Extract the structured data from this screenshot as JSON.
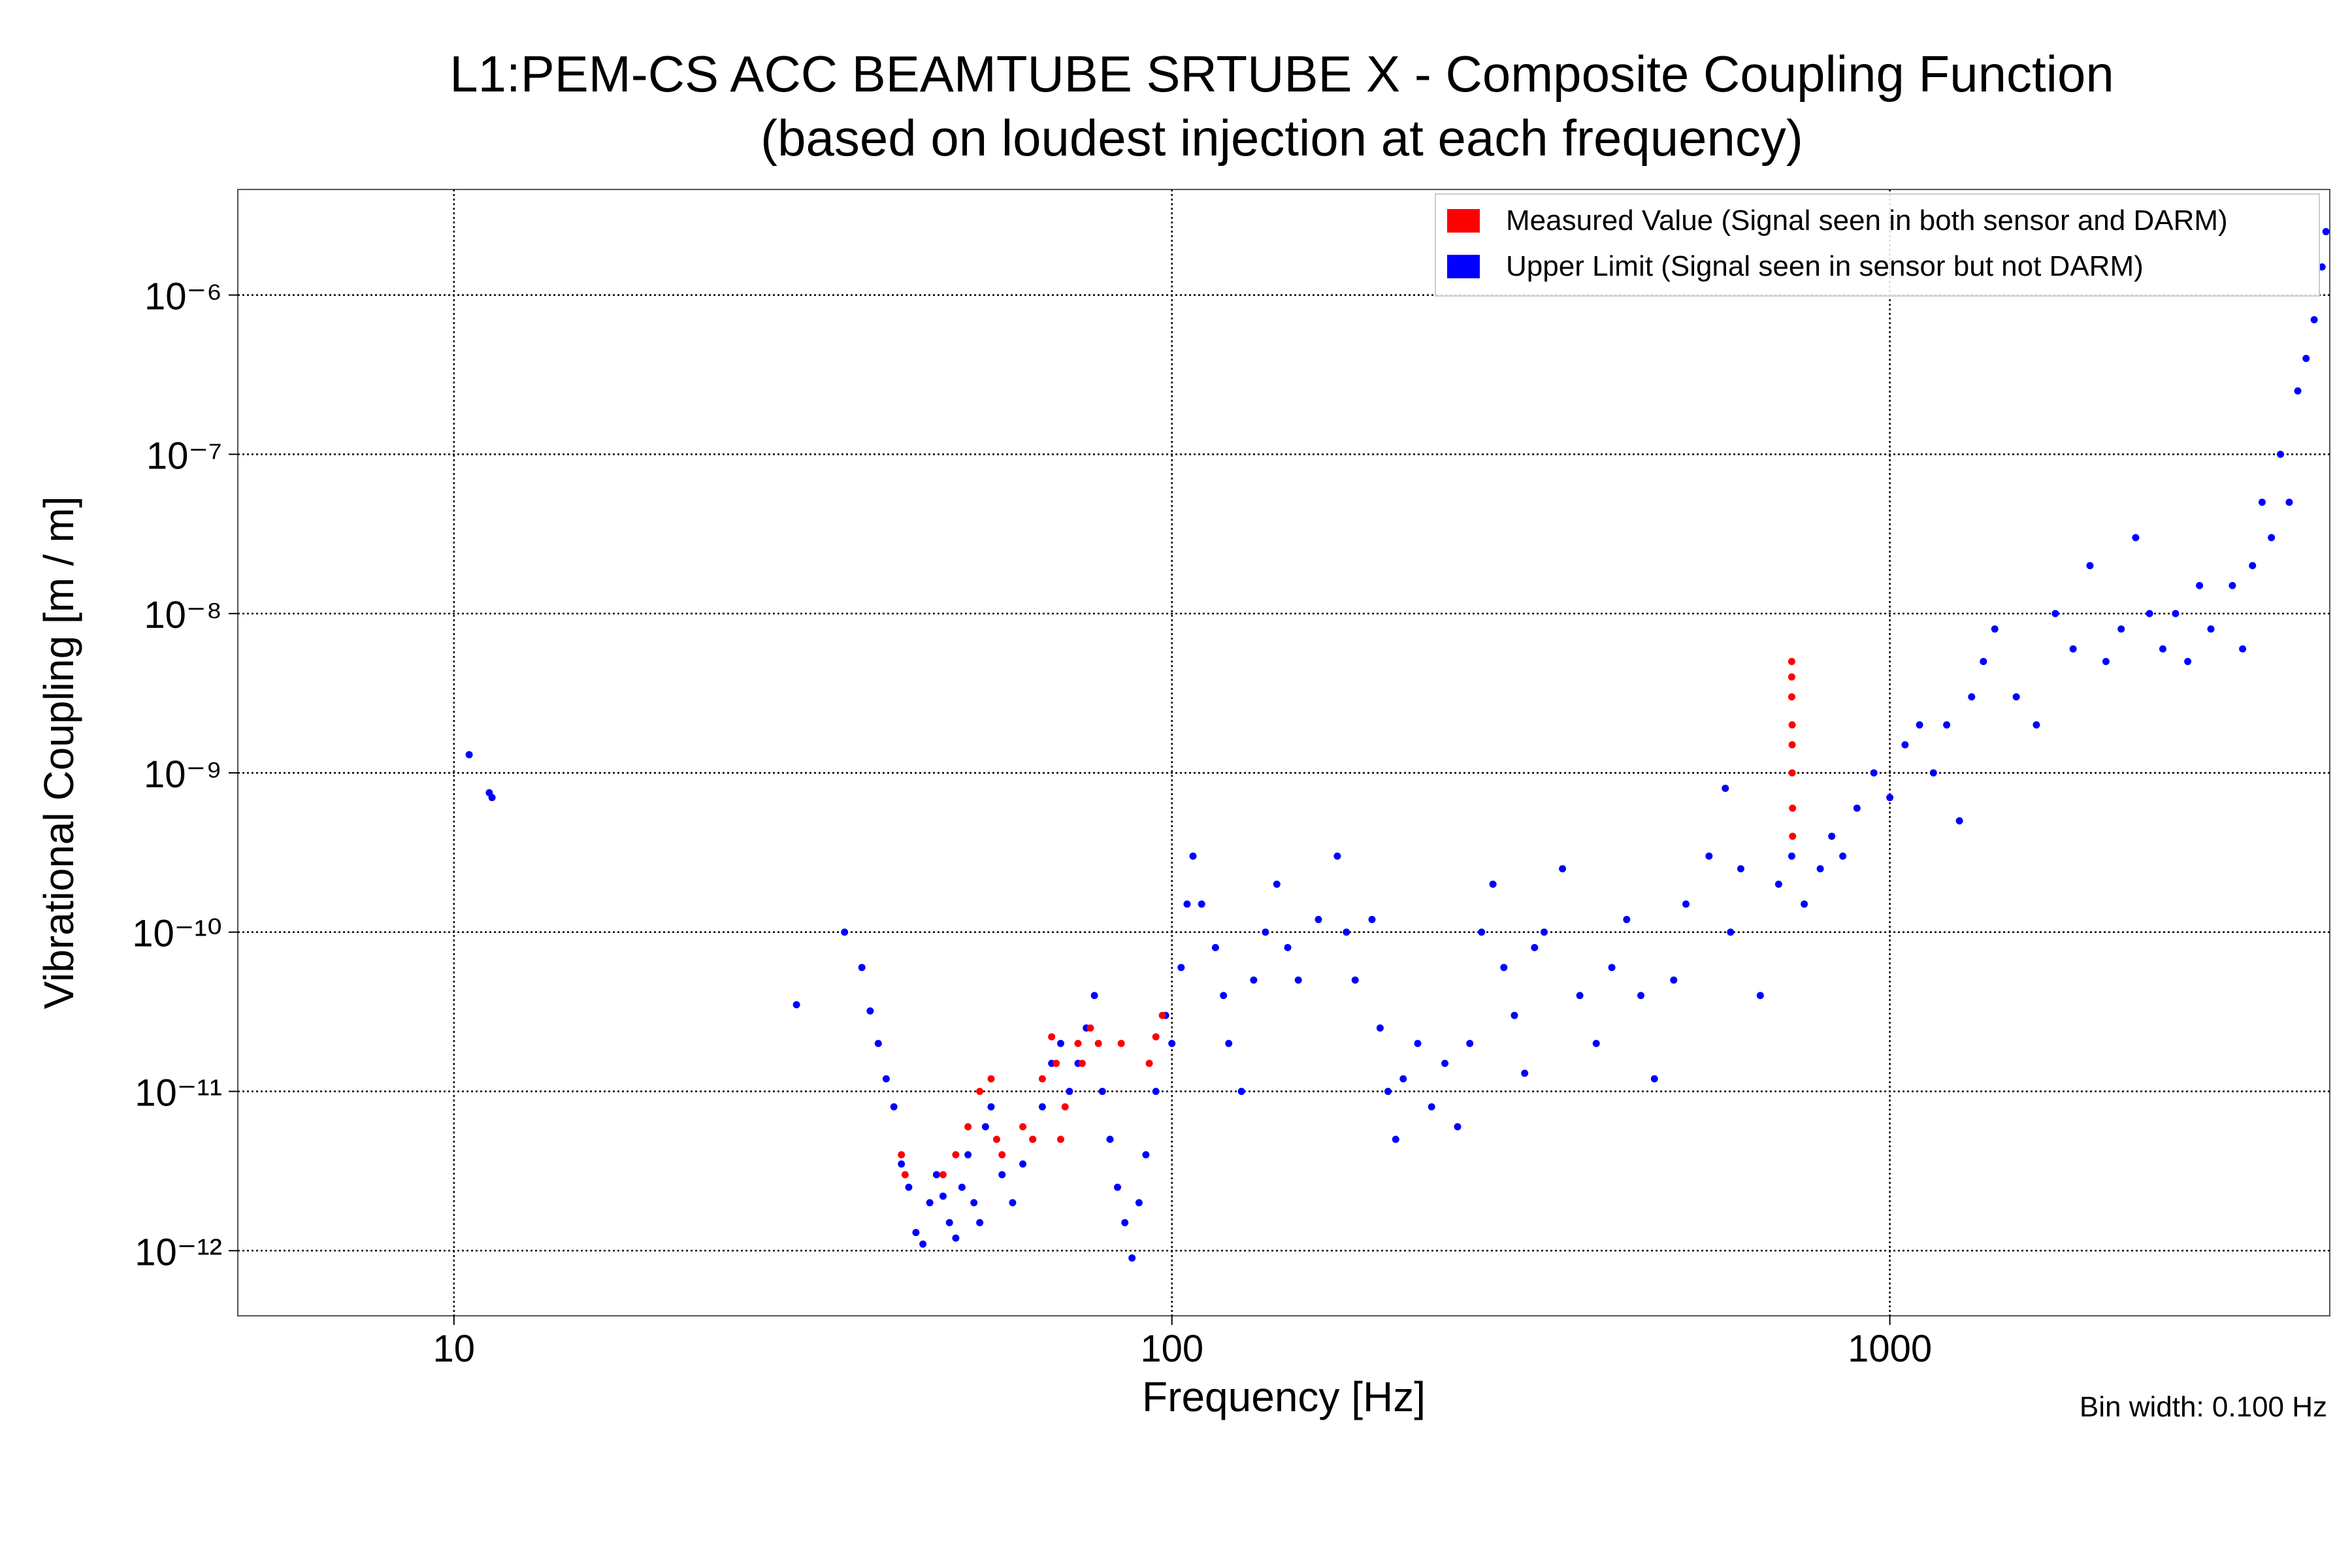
{
  "chart_data": {
    "type": "scatter",
    "title": "L1:PEM-CS ACC BEAMTUBE SRTUBE X - Composite Coupling Function",
    "subtitle": "(based on loudest injection at each frequency)",
    "x_label": "Frequency [Hz]",
    "y_label": "Vibrational Coupling [m / m]",
    "annotation": "Bin width: 0.100 Hz",
    "x_scale": "log",
    "y_scale": "log",
    "grid": true,
    "legend_position": "upper right",
    "xlim": [
      5,
      4100
    ],
    "ylim": [
      3.9e-13,
      4.6e-06
    ],
    "xticks": [
      10,
      100,
      1000
    ],
    "yticks": [
      {
        "value": 1e-12,
        "label": "10⁻¹²"
      },
      {
        "value": 1e-11,
        "label": "10⁻¹¹"
      },
      {
        "value": 1e-10,
        "label": "10⁻¹⁰"
      },
      {
        "value": 1e-09,
        "label": "10⁻⁹"
      },
      {
        "value": 1e-08,
        "label": "10⁻⁸"
      },
      {
        "value": 1e-07,
        "label": "10⁻⁷"
      },
      {
        "value": 1e-06,
        "label": "10⁻⁶"
      }
    ],
    "series": [
      {
        "name": "Measured Value (Signal seen in both sensor and DARM)",
        "color": "#ff0000",
        "x": [
          42,
          42.5,
          48,
          50,
          52,
          54,
          56,
          57,
          58,
          62,
          64,
          66,
          68,
          69,
          70,
          71,
          74,
          75,
          77,
          79,
          85,
          93,
          95,
          97,
          730,
          730,
          730,
          731,
          731,
          731,
          732,
          732
        ],
        "values": [
          4e-12,
          3e-12,
          3e-12,
          4e-12,
          6e-12,
          1e-11,
          1.2e-11,
          5e-12,
          4e-12,
          6e-12,
          5e-12,
          1.2e-11,
          2.2e-11,
          1.5e-11,
          5e-12,
          8e-12,
          2e-11,
          1.5e-11,
          2.5e-11,
          2e-11,
          2e-11,
          1.5e-11,
          2.2e-11,
          3e-11,
          5e-09,
          4e-09,
          3e-09,
          2e-09,
          1.5e-09,
          1e-09,
          6e-10,
          4e-10
        ]
      },
      {
        "name": "Upper Limit (Signal seen in sensor but not DARM)",
        "color": "#0000ff",
        "x": [
          10.5,
          11.2,
          11.3,
          30,
          35,
          37,
          38,
          39,
          40,
          41,
          42,
          43,
          44,
          45,
          46,
          47,
          48,
          49,
          50,
          51,
          52,
          53,
          54,
          55,
          56,
          58,
          60,
          62,
          64,
          66,
          68,
          70,
          72,
          74,
          76,
          78,
          80,
          82,
          84,
          86,
          88,
          90,
          92,
          95,
          98,
          100,
          103,
          105,
          107,
          110,
          115,
          118,
          120,
          125,
          130,
          135,
          140,
          145,
          150,
          160,
          170,
          175,
          180,
          190,
          195,
          200,
          205,
          210,
          220,
          230,
          240,
          250,
          260,
          270,
          280,
          290,
          300,
          310,
          320,
          330,
          350,
          370,
          390,
          410,
          430,
          450,
          470,
          500,
          520,
          560,
          590,
          600,
          620,
          660,
          700,
          730,
          760,
          800,
          830,
          860,
          900,
          950,
          1000,
          1050,
          1100,
          1150,
          1200,
          1250,
          1300,
          1350,
          1400,
          1500,
          1600,
          1700,
          1800,
          1900,
          2000,
          2100,
          2200,
          2300,
          2400,
          2500,
          2600,
          2700,
          2800,
          3000,
          3100,
          3200,
          3300,
          3400,
          3500,
          3600,
          3700,
          3800,
          3900,
          4000,
          4050
        ],
        "values": [
          1.3e-09,
          7.5e-10,
          7e-10,
          3.5e-11,
          1e-10,
          6e-11,
          3.2e-11,
          2e-11,
          1.2e-11,
          8e-12,
          3.5e-12,
          2.5e-12,
          1.3e-12,
          1.1e-12,
          2e-12,
          3e-12,
          2.2e-12,
          1.5e-12,
          1.2e-12,
          2.5e-12,
          4e-12,
          2e-12,
          1.5e-12,
          6e-12,
          8e-12,
          3e-12,
          2e-12,
          3.5e-12,
          5e-12,
          8e-12,
          1.5e-11,
          2e-11,
          1e-11,
          1.5e-11,
          2.5e-11,
          4e-11,
          1e-11,
          5e-12,
          2.5e-12,
          1.5e-12,
          9e-13,
          2e-12,
          4e-12,
          1e-11,
          3e-11,
          2e-11,
          6e-11,
          1.5e-10,
          3e-10,
          1.5e-10,
          8e-11,
          4e-11,
          2e-11,
          1e-11,
          5e-11,
          1e-10,
          2e-10,
          8e-11,
          5e-11,
          1.2e-10,
          3e-10,
          1e-10,
          5e-11,
          1.2e-10,
          2.5e-11,
          1e-11,
          5e-12,
          1.2e-11,
          2e-11,
          8e-12,
          1.5e-11,
          6e-12,
          2e-11,
          1e-10,
          2e-10,
          6e-11,
          3e-11,
          1.3e-11,
          8e-11,
          1e-10,
          2.5e-10,
          4e-11,
          2e-11,
          6e-11,
          1.2e-10,
          4e-11,
          1.2e-11,
          5e-11,
          1.5e-10,
          3e-10,
          8e-10,
          1e-10,
          2.5e-10,
          4e-11,
          2e-10,
          3e-10,
          1.5e-10,
          2.5e-10,
          4e-10,
          3e-10,
          6e-10,
          1e-09,
          7e-10,
          1.5e-09,
          2e-09,
          1e-09,
          2e-09,
          5e-10,
          3e-09,
          5e-09,
          8e-09,
          3e-09,
          2e-09,
          1e-08,
          6e-09,
          2e-08,
          5e-09,
          8e-09,
          3e-08,
          1e-08,
          6e-09,
          1e-08,
          5e-09,
          1.5e-08,
          8e-09,
          1.5e-08,
          6e-09,
          2e-08,
          5e-08,
          3e-08,
          1e-07,
          5e-08,
          2.5e-07,
          4e-07,
          7e-07,
          1.5e-06,
          2.5e-06
        ]
      }
    ]
  }
}
